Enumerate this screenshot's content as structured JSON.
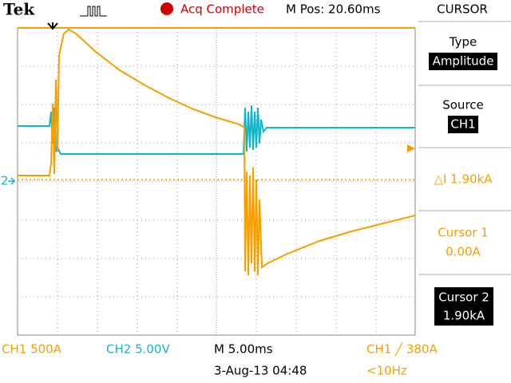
{
  "header": {
    "brand": "Tek",
    "status": "Acq Complete",
    "position": "M Pos: 20.60ms"
  },
  "menu": {
    "title": "CURSOR",
    "type_label": "Type",
    "type_value": "Amplitude",
    "source_label": "Source",
    "source_value": "CH1",
    "delta": "△I 1.90kA",
    "cursor1_label": "Cursor 1",
    "cursor1_value": "0.00A",
    "cursor2_label": "Cursor 2",
    "cursor2_value": "1.90kA"
  },
  "markers": {
    "ch2": "2"
  },
  "footer": {
    "ch1": "CH1  500A",
    "ch2": "CH2  5.00V",
    "timebase": "M 5.00ms",
    "trigger": "CH1 ╱ 380A",
    "date": "3-Aug-13 04:48",
    "frequency": "<10Hz"
  }
}
